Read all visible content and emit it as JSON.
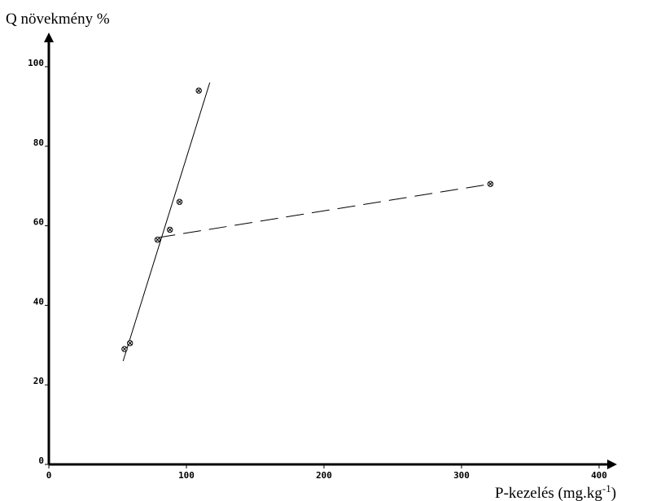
{
  "chart_data": {
    "type": "scatter",
    "ylabel": "Q növekmény %",
    "xlabel_main": "P-kezelés (mg.kg",
    "xlabel_sup": "-1",
    "xlabel_close": ")",
    "xlim": [
      0,
      400
    ],
    "ylim": [
      0,
      100
    ],
    "xticks": [
      0,
      100,
      200,
      300,
      400
    ],
    "yticks": [
      0,
      20,
      40,
      60,
      80,
      100
    ],
    "grid": false,
    "points": [
      {
        "x": 55,
        "y": 29
      },
      {
        "x": 59,
        "y": 30.5
      },
      {
        "x": 79,
        "y": 56.5
      },
      {
        "x": 88,
        "y": 59
      },
      {
        "x": 95,
        "y": 66
      },
      {
        "x": 109,
        "y": 94
      },
      {
        "x": 321,
        "y": 70.5
      }
    ],
    "lines": [
      {
        "style": "solid",
        "x": [
          54,
          117
        ],
        "y": [
          26,
          96
        ]
      },
      {
        "style": "dashed",
        "x": [
          79,
          321
        ],
        "y": [
          57,
          70.5
        ]
      }
    ]
  }
}
